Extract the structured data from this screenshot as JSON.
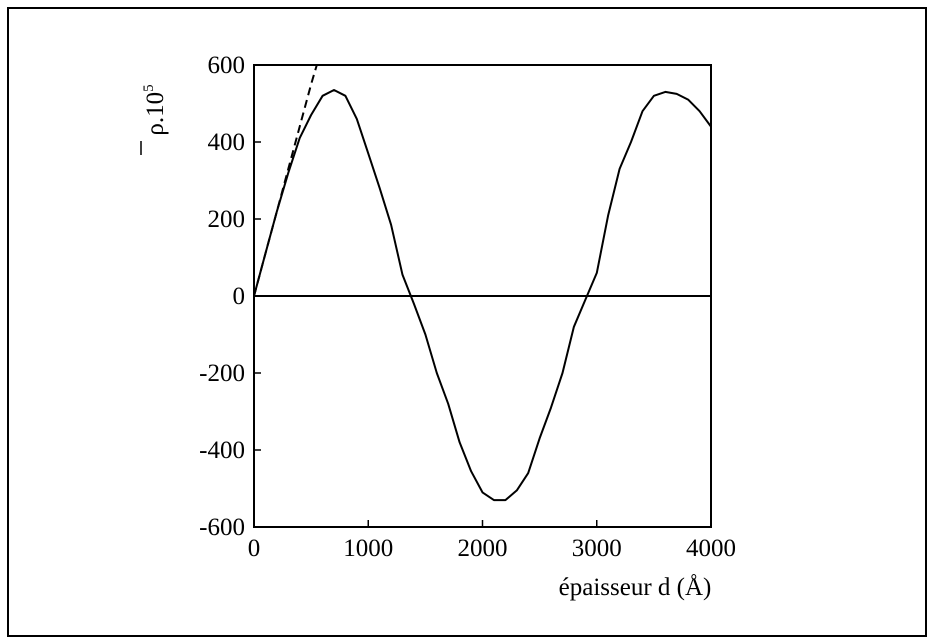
{
  "chart_data": {
    "type": "line",
    "xlabel": "épaisseur d  (Å)",
    "ylabel": {
      "base": "ρ",
      "mid": ".10",
      "exp": "5"
    },
    "xlim": [
      0,
      4000
    ],
    "ylim": [
      -600,
      600
    ],
    "x_ticks": [
      "0",
      "1000",
      "2000",
      "3000",
      "4000"
    ],
    "y_ticks": [
      "600",
      "400",
      "200",
      "0",
      "-200",
      "-400",
      "-600"
    ],
    "series": [
      {
        "style": "solid",
        "x": [
          0,
          100,
          200,
          300,
          400,
          500,
          600,
          700,
          800,
          900,
          1000,
          1100,
          1200,
          1300,
          1400,
          1500,
          1600,
          1700,
          1800,
          1900,
          2000,
          2100,
          2200,
          2300,
          2400,
          2500,
          2600,
          2700,
          2800,
          2900,
          3000,
          3100,
          3200,
          3300,
          3400,
          3500,
          3600,
          3700,
          3800,
          3900,
          4000
        ],
        "y": [
          0,
          110,
          220,
          320,
          410,
          470,
          520,
          535,
          520,
          460,
          370,
          280,
          185,
          55,
          -20,
          -100,
          -200,
          -280,
          -380,
          -455,
          -510,
          -530,
          -530,
          -505,
          -460,
          -370,
          -290,
          -200,
          -80,
          -10,
          60,
          210,
          330,
          400,
          480,
          520,
          530,
          525,
          510,
          480,
          440
        ]
      },
      {
        "style": "dashed",
        "x": [
          0,
          100,
          200,
          300,
          400,
          500,
          550
        ],
        "y": [
          0,
          110,
          220,
          330,
          440,
          550,
          600
        ]
      },
      {
        "style": "baseline",
        "x": [
          0,
          4000
        ],
        "y": [
          0,
          0
        ]
      }
    ]
  }
}
